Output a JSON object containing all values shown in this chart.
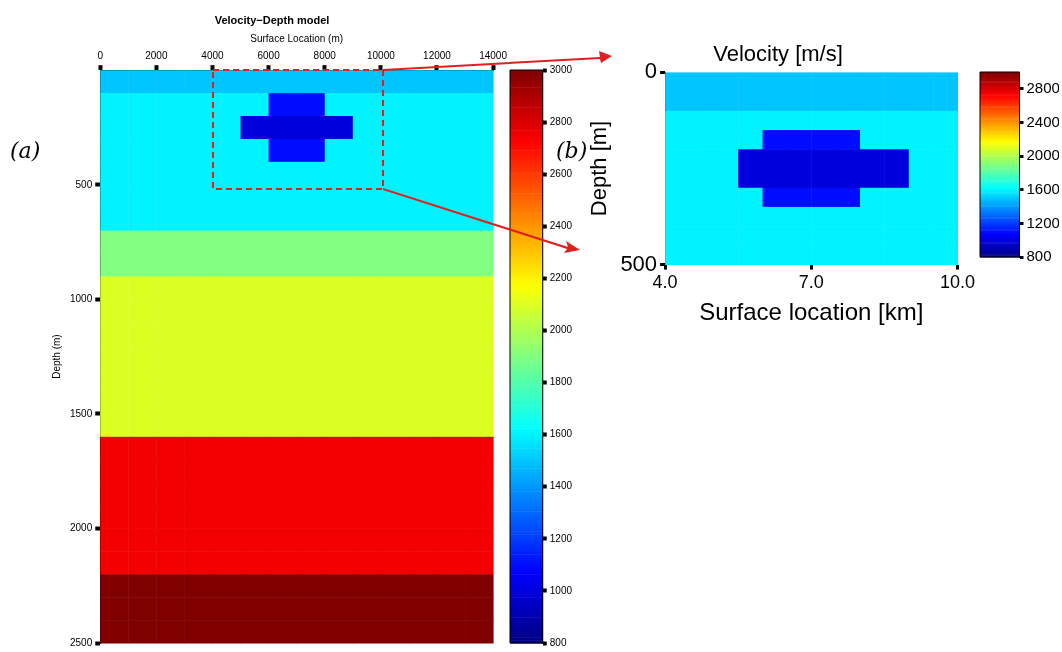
{
  "chart_data": [
    {
      "type": "heatmap",
      "title": "Velocity−Depth model",
      "xlabel": "Surface Location (m)",
      "ylabel": "Depth (m)",
      "annotations": [
        "(a)"
      ],
      "xlim": [
        0,
        14000
      ],
      "xticks": [
        0,
        2000,
        4000,
        6000,
        8000,
        10000,
        12000,
        14000
      ],
      "ylim": [
        2500,
        0
      ],
      "yticks": [
        500,
        1000,
        1500,
        2000,
        2500
      ],
      "clim": [
        800,
        3000
      ],
      "cticks": [
        800,
        1000,
        1200,
        1400,
        1600,
        1800,
        2000,
        2200,
        2400,
        2600,
        2800,
        3000
      ],
      "grid": false,
      "cells": [
        [
          1500,
          1500,
          1500,
          1500,
          1500,
          1500,
          1500,
          1500,
          1500,
          1500,
          1500,
          1500,
          1500,
          1500
        ],
        [
          1600,
          1600,
          1600,
          1600,
          1600,
          1600,
          1100,
          1100,
          1600,
          1600,
          1600,
          1600,
          1600,
          1600
        ],
        [
          1600,
          1600,
          1600,
          1600,
          1600,
          1000,
          1000,
          1000,
          1000,
          1600,
          1600,
          1600,
          1600,
          1600
        ],
        [
          1600,
          1600,
          1600,
          1600,
          1600,
          1600,
          1100,
          1100,
          1600,
          1600,
          1600,
          1600,
          1600,
          1600
        ],
        [
          1600,
          1600,
          1600,
          1600,
          1600,
          1600,
          1600,
          1600,
          1600,
          1600,
          1600,
          1600,
          1600,
          1600
        ],
        [
          1600,
          1600,
          1600,
          1600,
          1600,
          1600,
          1600,
          1600,
          1600,
          1600,
          1600,
          1600,
          1600,
          1600
        ],
        [
          1600,
          1600,
          1600,
          1600,
          1600,
          1600,
          1600,
          1600,
          1600,
          1600,
          1600,
          1600,
          1600,
          1600
        ],
        [
          1900,
          1900,
          1900,
          1900,
          1900,
          1900,
          1900,
          1900,
          1900,
          1900,
          1900,
          1900,
          1900,
          1900
        ],
        [
          1900,
          1900,
          1900,
          1900,
          1900,
          1900,
          1900,
          1900,
          1900,
          1900,
          1900,
          1900,
          1900,
          1900
        ],
        [
          2100,
          2100,
          2100,
          2100,
          2100,
          2100,
          2100,
          2100,
          2100,
          2100,
          2100,
          2100,
          2100,
          2100
        ],
        [
          2100,
          2100,
          2100,
          2100,
          2100,
          2100,
          2100,
          2100,
          2100,
          2100,
          2100,
          2100,
          2100,
          2100
        ],
        [
          2100,
          2100,
          2100,
          2100,
          2100,
          2100,
          2100,
          2100,
          2100,
          2100,
          2100,
          2100,
          2100,
          2100
        ],
        [
          2100,
          2100,
          2100,
          2100,
          2100,
          2100,
          2100,
          2100,
          2100,
          2100,
          2100,
          2100,
          2100,
          2100
        ],
        [
          2100,
          2100,
          2100,
          2100,
          2100,
          2100,
          2100,
          2100,
          2100,
          2100,
          2100,
          2100,
          2100,
          2100
        ],
        [
          2100,
          2100,
          2100,
          2100,
          2100,
          2100,
          2100,
          2100,
          2100,
          2100,
          2100,
          2100,
          2100,
          2100
        ],
        [
          2100,
          2100,
          2100,
          2100,
          2100,
          2100,
          2100,
          2100,
          2100,
          2100,
          2100,
          2100,
          2100,
          2100
        ],
        [
          2750,
          2750,
          2750,
          2750,
          2750,
          2750,
          2750,
          2750,
          2750,
          2750,
          2750,
          2750,
          2750,
          2750
        ],
        [
          2750,
          2750,
          2750,
          2750,
          2750,
          2750,
          2750,
          2750,
          2750,
          2750,
          2750,
          2750,
          2750,
          2750
        ],
        [
          2750,
          2750,
          2750,
          2750,
          2750,
          2750,
          2750,
          2750,
          2750,
          2750,
          2750,
          2750,
          2750,
          2750
        ],
        [
          2750,
          2750,
          2750,
          2750,
          2750,
          2750,
          2750,
          2750,
          2750,
          2750,
          2750,
          2750,
          2750,
          2750
        ],
        [
          2750,
          2750,
          2750,
          2750,
          2750,
          2750,
          2750,
          2750,
          2750,
          2750,
          2750,
          2750,
          2750,
          2750
        ],
        [
          2750,
          2750,
          2750,
          2750,
          2750,
          2750,
          2750,
          2750,
          2750,
          2750,
          2750,
          2750,
          2750,
          2750
        ],
        [
          3000,
          3000,
          3000,
          3000,
          3000,
          3000,
          3000,
          3000,
          3000,
          3000,
          3000,
          3000,
          3000,
          3000
        ],
        [
          3000,
          3000,
          3000,
          3000,
          3000,
          3000,
          3000,
          3000,
          3000,
          3000,
          3000,
          3000,
          3000,
          3000
        ],
        [
          3000,
          3000,
          3000,
          3000,
          3000,
          3000,
          3000,
          3000,
          3000,
          3000,
          3000,
          3000,
          3000,
          3000
        ]
      ]
    },
    {
      "type": "heatmap",
      "title": "Velocity [m/s]",
      "xlabel": "Surface location [km]",
      "ylabel": "Depth [m]",
      "annotations": [
        "(b)"
      ],
      "xlim": [
        4,
        10
      ],
      "xticks": [
        {
          "value": 4,
          "label": "4.0"
        },
        {
          "value": 7,
          "label": "7.0"
        },
        {
          "value": 10,
          "label": "10.0"
        }
      ],
      "ylim": [
        500,
        0
      ],
      "yticks": [
        0,
        500
      ],
      "clim": [
        800,
        3000
      ],
      "cticks": [
        800,
        1200,
        1600,
        2000,
        2400,
        2800
      ],
      "grid": false,
      "cells": [
        [
          1500,
          1500,
          1500,
          1500,
          1500,
          1500,
          1500,
          1500,
          1500,
          1500,
          1500,
          1500
        ],
        [
          1500,
          1500,
          1500,
          1500,
          1500,
          1500,
          1500,
          1500,
          1500,
          1500,
          1500,
          1500
        ],
        [
          1600,
          1600,
          1600,
          1600,
          1600,
          1600,
          1600,
          1600,
          1600,
          1600,
          1600,
          1600
        ],
        [
          1600,
          1600,
          1600,
          1600,
          1100,
          1100,
          1100,
          1100,
          1600,
          1600,
          1600,
          1600
        ],
        [
          1600,
          1600,
          1600,
          1000,
          1000,
          1000,
          1000,
          1000,
          1000,
          1000,
          1600,
          1600
        ],
        [
          1600,
          1600,
          1600,
          1000,
          1000,
          1000,
          1000,
          1000,
          1000,
          1000,
          1600,
          1600
        ],
        [
          1600,
          1600,
          1600,
          1600,
          1100,
          1100,
          1100,
          1100,
          1600,
          1600,
          1600,
          1600
        ],
        [
          1600,
          1600,
          1600,
          1600,
          1600,
          1600,
          1600,
          1600,
          1600,
          1600,
          1600,
          1600
        ],
        [
          1600,
          1600,
          1600,
          1600,
          1600,
          1600,
          1600,
          1600,
          1600,
          1600,
          1600,
          1600
        ],
        [
          1600,
          1600,
          1600,
          1600,
          1600,
          1600,
          1600,
          1600,
          1600,
          1600,
          1600,
          1600
        ]
      ]
    }
  ]
}
